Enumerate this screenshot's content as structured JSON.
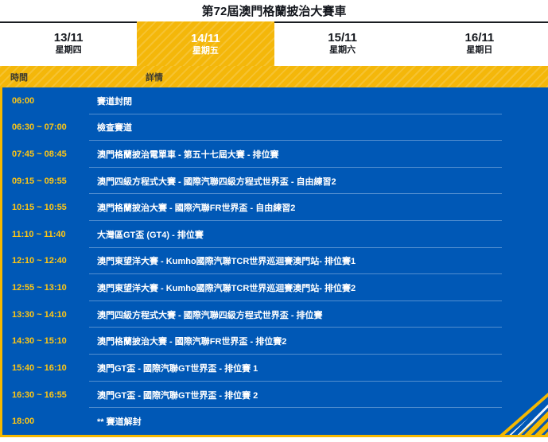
{
  "title": "第72屆澳門格蘭披治大賽車",
  "tabs": [
    {
      "date": "13/11",
      "weekday": "星期四",
      "selected": false
    },
    {
      "date": "14/11",
      "weekday": "星期五",
      "selected": true
    },
    {
      "date": "15/11",
      "weekday": "星期六",
      "selected": false
    },
    {
      "date": "16/11",
      "weekday": "星期日",
      "selected": false
    }
  ],
  "table": {
    "headers": {
      "time": "時間",
      "details": "詳情"
    },
    "rows": [
      {
        "time": "06:00",
        "details": "賽道封閉"
      },
      {
        "time": "06:30 ~ 07:00",
        "details": "檢查賽道"
      },
      {
        "time": "07:45 ~ 08:45",
        "details": "澳門格蘭披治電單車 - 第五十七屆大賽 - 排位賽"
      },
      {
        "time": "09:15 ~ 09:55",
        "details": "澳門四級方程式大賽 - 國際汽聯四級方程式世界盃 - 自由練習2"
      },
      {
        "time": "10:15 ~ 10:55",
        "details": "澳門格蘭披治大賽 - 國際汽聯FR世界盃 - 自由練習2"
      },
      {
        "time": "11:10 ~ 11:40",
        "details": "大灣區GT盃 (GT4) - 排位賽"
      },
      {
        "time": "12:10 ~ 12:40",
        "details": "澳門東望洋大賽 - Kumho國際汽聯TCR世界巡迴賽澳門站- 排位賽1"
      },
      {
        "time": "12:55 ~ 13:10",
        "details": "澳門東望洋大賽 - Kumho國際汽聯TCR世界巡迴賽澳門站- 排位賽2"
      },
      {
        "time": "13:30 ~ 14:10",
        "details": "澳門四級方程式大賽 - 國際汽聯四級方程式世界盃 - 排位賽"
      },
      {
        "time": "14:30 ~ 15:10",
        "details": "澳門格蘭披治大賽 - 國際汽聯FR世界盃 - 排位賽2"
      },
      {
        "time": "15:40 ~ 16:10",
        "details": "澳門GT盃 - 國際汽聯GT世界盃 - 排位賽 1"
      },
      {
        "time": "16:30 ~ 16:55",
        "details": "澳門GT盃 - 國際汽聯GT世界盃 - 排位賽 2"
      },
      {
        "time": "18:00",
        "details": "** 賽道解封"
      }
    ]
  },
  "colors": {
    "accent_yellow": "#f4b70a",
    "panel_blue": "#0058b6",
    "time_text_yellow": "#ffc613",
    "detail_text_white": "#ffffff",
    "tab_text_dark": "#15181e"
  }
}
